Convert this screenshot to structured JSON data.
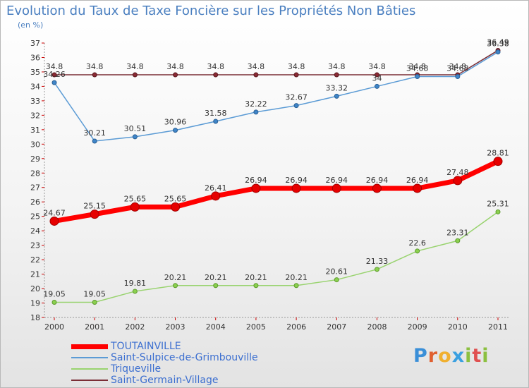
{
  "header": {
    "title": "Evolution du Taux de Taxe Foncière sur les Propriétés Non Bâties",
    "unit": "(en %)"
  },
  "logo": {
    "text": "Proxiti"
  },
  "chart_data": {
    "type": "line",
    "title": "Evolution du Taux de Taxe Foncière sur les Propriétés Non Bâties",
    "ylabel": "(en %)",
    "xlabel": "",
    "x": [
      "2000",
      "2001",
      "2002",
      "2003",
      "2004",
      "2005",
      "2006",
      "2007",
      "2008",
      "2009",
      "2010",
      "2011"
    ],
    "ylim": [
      18,
      37
    ],
    "yticks": [
      18,
      19,
      20,
      21,
      22,
      23,
      24,
      25,
      26,
      27,
      28,
      29,
      30,
      31,
      32,
      33,
      34,
      35,
      36,
      37
    ],
    "grid": false,
    "legend_position": "bottom-left",
    "series": [
      {
        "name": "TOUTAINVILLE",
        "color": "#ff0000",
        "values": [
          24.67,
          25.15,
          25.65,
          25.65,
          26.41,
          26.94,
          26.94,
          26.94,
          26.94,
          26.94,
          27.48,
          28.81
        ],
        "labels": [
          "24.67",
          "25.15",
          "25.65",
          "25.65",
          "26.41",
          "26.94",
          "26.94",
          "26.94",
          "26.94",
          "26.94",
          "27.48",
          "28.81"
        ]
      },
      {
        "name": "Saint-Sulpice-de-Grimbouville",
        "color": "#5b9bd5",
        "values": [
          34.26,
          30.21,
          30.51,
          30.96,
          31.58,
          32.22,
          32.67,
          33.32,
          34,
          34.68,
          34.68,
          36.38
        ],
        "labels": [
          "34.26",
          "30.21",
          "30.51",
          "30.96",
          "31.58",
          "32.22",
          "32.67",
          "33.32",
          "34",
          "34.68",
          "34.68",
          "36.38"
        ]
      },
      {
        "name": "Triqueville",
        "color": "#99d36f",
        "values": [
          19.05,
          19.05,
          19.81,
          20.21,
          20.21,
          20.21,
          20.21,
          20.61,
          21.33,
          22.6,
          23.31,
          25.31
        ],
        "labels": [
          "19.05",
          "19.05",
          "19.81",
          "20.21",
          "20.21",
          "20.21",
          "20.21",
          "20.61",
          "21.33",
          "22.6",
          "23.31",
          "25.31"
        ]
      },
      {
        "name": "Saint-Germain-Village",
        "color": "#7a2e36",
        "values": [
          34.8,
          34.8,
          34.8,
          34.8,
          34.8,
          34.8,
          34.8,
          34.8,
          34.8,
          34.8,
          34.8,
          36.49
        ],
        "labels": [
          "34.8",
          "34.8",
          "34.8",
          "34.8",
          "34.8",
          "34.8",
          "34.8",
          "34.8",
          "34.8",
          "34.8",
          "34.8",
          "36.49"
        ]
      }
    ]
  }
}
